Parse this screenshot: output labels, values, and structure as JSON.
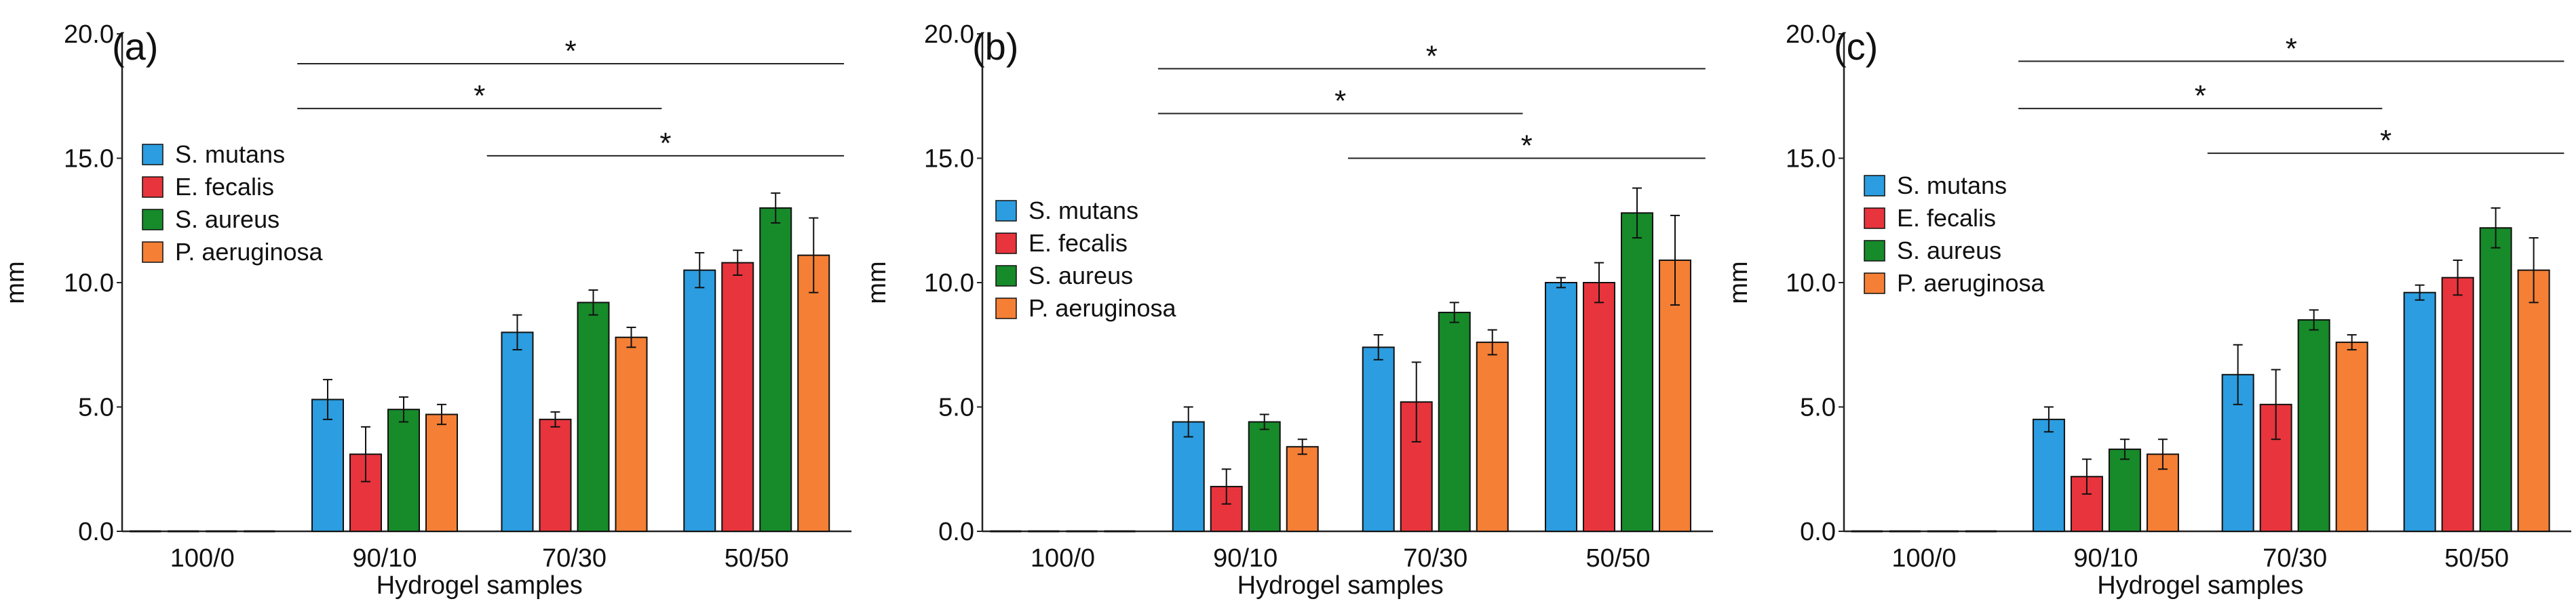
{
  "figure": {
    "y_ticks": [
      "0.0",
      "5.0",
      "10.0",
      "15.0",
      "20.0"
    ],
    "sig_marker": "*"
  },
  "chart_data": [
    {
      "type": "bar",
      "panel_label": "(a)",
      "categories": [
        "100/0",
        "90/10",
        "70/30",
        "50/50"
      ],
      "xlabel": "Hydrogel samples",
      "ylabel": "mm",
      "ylim": [
        0,
        20
      ],
      "yticks": [
        0,
        5,
        10,
        15,
        20
      ],
      "legend_position": "left-upper",
      "series": [
        {
          "name": "S. mutans",
          "color": "#2b9de0",
          "values": [
            0,
            5.3,
            8.0,
            10.5
          ],
          "errors": [
            0,
            0.8,
            0.7,
            0.7
          ]
        },
        {
          "name": "E. fecalis",
          "color": "#e8343c",
          "values": [
            0,
            3.1,
            4.5,
            10.8
          ],
          "errors": [
            0,
            1.1,
            0.3,
            0.5
          ]
        },
        {
          "name": "S. aureus",
          "color": "#178a2a",
          "values": [
            0,
            4.9,
            9.2,
            13.0
          ],
          "errors": [
            0,
            0.5,
            0.5,
            0.6
          ]
        },
        {
          "name": "P. aeruginosa",
          "color": "#f57f35",
          "values": [
            0,
            4.7,
            7.8,
            11.1
          ],
          "errors": [
            0,
            0.4,
            0.4,
            1.5
          ]
        }
      ],
      "significance": [
        {
          "from": "90/10",
          "to": "50/50",
          "label": "*",
          "y": 18.8
        },
        {
          "from": "90/10",
          "to": "70/30",
          "label": "*",
          "y": 17.0
        },
        {
          "from": "70/30",
          "to": "50/50",
          "label": "*",
          "y": 15.1
        }
      ]
    },
    {
      "type": "bar",
      "panel_label": "(b)",
      "categories": [
        "100/0",
        "90/10",
        "70/30",
        "50/50"
      ],
      "xlabel": "Hydrogel samples",
      "ylabel": "mm",
      "ylim": [
        0,
        20
      ],
      "yticks": [
        0,
        5,
        10,
        15,
        20
      ],
      "legend_position": "left-middle",
      "series": [
        {
          "name": "S. mutans",
          "color": "#2b9de0",
          "values": [
            0,
            4.4,
            7.4,
            10.0
          ],
          "errors": [
            0,
            0.6,
            0.5,
            0.2
          ]
        },
        {
          "name": "E. fecalis",
          "color": "#e8343c",
          "values": [
            0,
            1.8,
            5.2,
            10.0
          ],
          "errors": [
            0,
            0.7,
            1.6,
            0.8
          ]
        },
        {
          "name": "S. aureus",
          "color": "#178a2a",
          "values": [
            0,
            4.4,
            8.8,
            12.8
          ],
          "errors": [
            0,
            0.3,
            0.4,
            1.0
          ]
        },
        {
          "name": "P. aeruginosa",
          "color": "#f57f35",
          "values": [
            0,
            3.4,
            7.6,
            10.9
          ],
          "errors": [
            0,
            0.3,
            0.5,
            1.8
          ]
        }
      ],
      "significance": [
        {
          "from": "90/10",
          "to": "50/50",
          "label": "*",
          "y": 18.6
        },
        {
          "from": "90/10",
          "to": "70/30",
          "label": "*",
          "y": 16.8
        },
        {
          "from": "70/30",
          "to": "50/50",
          "label": "*",
          "y": 15.0
        }
      ]
    },
    {
      "type": "bar",
      "panel_label": "(c)",
      "categories": [
        "100/0",
        "90/10",
        "70/30",
        "50/50"
      ],
      "xlabel": "Hydrogel samples",
      "ylabel": "mm",
      "ylim": [
        0,
        20
      ],
      "yticks": [
        0,
        5,
        10,
        15,
        20
      ],
      "legend_position": "left-middle",
      "series": [
        {
          "name": "S. mutans",
          "color": "#2b9de0",
          "values": [
            0,
            4.5,
            6.3,
            9.6
          ],
          "errors": [
            0,
            0.5,
            1.2,
            0.3
          ]
        },
        {
          "name": "E. fecalis",
          "color": "#e8343c",
          "values": [
            0,
            2.2,
            5.1,
            10.2
          ],
          "errors": [
            0,
            0.7,
            1.4,
            0.7
          ]
        },
        {
          "name": "S. aureus",
          "color": "#178a2a",
          "values": [
            0,
            3.3,
            8.5,
            12.2
          ],
          "errors": [
            0,
            0.4,
            0.4,
            0.8
          ]
        },
        {
          "name": "P. aeruginosa",
          "color": "#f57f35",
          "values": [
            0,
            3.1,
            7.6,
            10.5
          ],
          "errors": [
            0,
            0.6,
            0.3,
            1.3
          ]
        }
      ],
      "significance": [
        {
          "from": "90/10",
          "to": "50/50",
          "label": "*",
          "y": 18.9
        },
        {
          "from": "90/10",
          "to": "70/30",
          "label": "*",
          "y": 17.0
        },
        {
          "from": "70/30",
          "to": "50/50",
          "label": "*",
          "y": 15.2
        }
      ]
    }
  ]
}
